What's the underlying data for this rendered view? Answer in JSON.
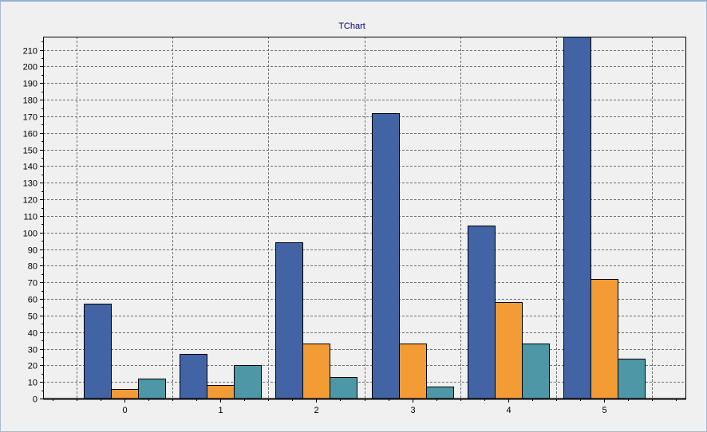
{
  "chart_data": {
    "type": "bar",
    "title": "TChart",
    "xlabel": "",
    "ylabel": "",
    "categories": [
      "0",
      "1",
      "2",
      "3",
      "4",
      "5"
    ],
    "ylim": [
      0,
      218
    ],
    "yticks": [
      0,
      10,
      20,
      30,
      40,
      50,
      60,
      70,
      80,
      90,
      100,
      110,
      120,
      130,
      140,
      150,
      160,
      170,
      180,
      190,
      200,
      210
    ],
    "grid": true,
    "legend": "none",
    "series": [
      {
        "values": [
          57,
          27,
          94,
          172,
          104,
          218
        ],
        "color": "#4264a4"
      },
      {
        "values": [
          6,
          8,
          33,
          33,
          58,
          72
        ],
        "color": "#f39c35"
      },
      {
        "values": [
          12,
          20,
          13,
          7,
          33,
          24
        ],
        "color": "#4d97a6"
      }
    ]
  }
}
